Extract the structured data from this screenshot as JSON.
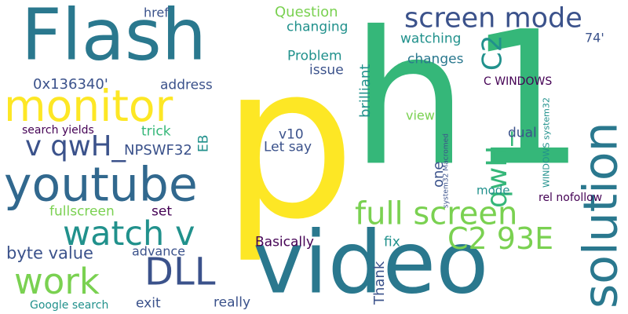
{
  "background": "#ffffff",
  "palette": {
    "yellow": "#fde725",
    "green": "#35b779",
    "lime": "#7ad151",
    "teal": "#21918c",
    "blue": "#2a788e",
    "slate": "#31688e",
    "indigo": "#3b528b",
    "purple": "#482878",
    "dark": "#440154"
  },
  "words": [
    {
      "text": "p",
      "color": "yellow"
    },
    {
      "text": "h1",
      "color": "green"
    },
    {
      "text": "video",
      "color": "blue"
    },
    {
      "text": "Flash",
      "color": "blue"
    },
    {
      "text": "youtube",
      "color": "slate"
    },
    {
      "text": "solution",
      "color": "blue"
    },
    {
      "text": "monitor",
      "color": "yellow"
    },
    {
      "text": "screen mode",
      "color": "indigo"
    },
    {
      "text": "full screen",
      "color": "lime"
    },
    {
      "text": "work",
      "color": "lime"
    },
    {
      "text": "DLL",
      "color": "indigo"
    },
    {
      "text": "watch v",
      "color": "teal"
    },
    {
      "text": "v qwH_",
      "color": "indigo"
    },
    {
      "text": "C2 93E",
      "color": "lime"
    },
    {
      "text": "C2",
      "color": "teal"
    },
    {
      "text": "qwH_",
      "color": "green"
    },
    {
      "text": "byte value",
      "color": "indigo"
    },
    {
      "text": "NPSWF32",
      "color": "indigo"
    },
    {
      "text": "0x136340'",
      "color": "indigo"
    },
    {
      "text": "address",
      "color": "indigo"
    },
    {
      "text": "href",
      "color": "indigo"
    },
    {
      "text": "Question",
      "color": "lime"
    },
    {
      "text": "changing",
      "color": "teal"
    },
    {
      "text": "watching",
      "color": "teal"
    },
    {
      "text": "74'",
      "color": "indigo"
    },
    {
      "text": "changes",
      "color": "blue"
    },
    {
      "text": "Problem",
      "color": "teal"
    },
    {
      "text": "issue",
      "color": "indigo"
    },
    {
      "text": "brilliant",
      "color": "teal"
    },
    {
      "text": "C WINDOWS",
      "color": "dark"
    },
    {
      "text": "trick",
      "color": "green"
    },
    {
      "text": "EB",
      "color": "teal"
    },
    {
      "text": "v10",
      "color": "indigo"
    },
    {
      "text": "Let say",
      "color": "indigo"
    },
    {
      "text": "view",
      "color": "lime"
    },
    {
      "text": "dual",
      "color": "indigo"
    },
    {
      "text": "WINDOWS system32",
      "color": "teal"
    },
    {
      "text": "one",
      "color": "indigo"
    },
    {
      "text": "system32 Macromed",
      "color": "indigo"
    },
    {
      "text": "mode",
      "color": "teal"
    },
    {
      "text": "rel nofollow",
      "color": "dark"
    },
    {
      "text": "search yields",
      "color": "dark"
    },
    {
      "text": "fullscreen",
      "color": "lime"
    },
    {
      "text": "set",
      "color": "dark"
    },
    {
      "text": "advance",
      "color": "indigo"
    },
    {
      "text": "Basically",
      "color": "dark"
    },
    {
      "text": "fix",
      "color": "teal"
    },
    {
      "text": "Thank",
      "color": "indigo"
    },
    {
      "text": "Google search",
      "color": "teal"
    },
    {
      "text": "exit",
      "color": "indigo"
    },
    {
      "text": "really",
      "color": "indigo"
    }
  ]
}
